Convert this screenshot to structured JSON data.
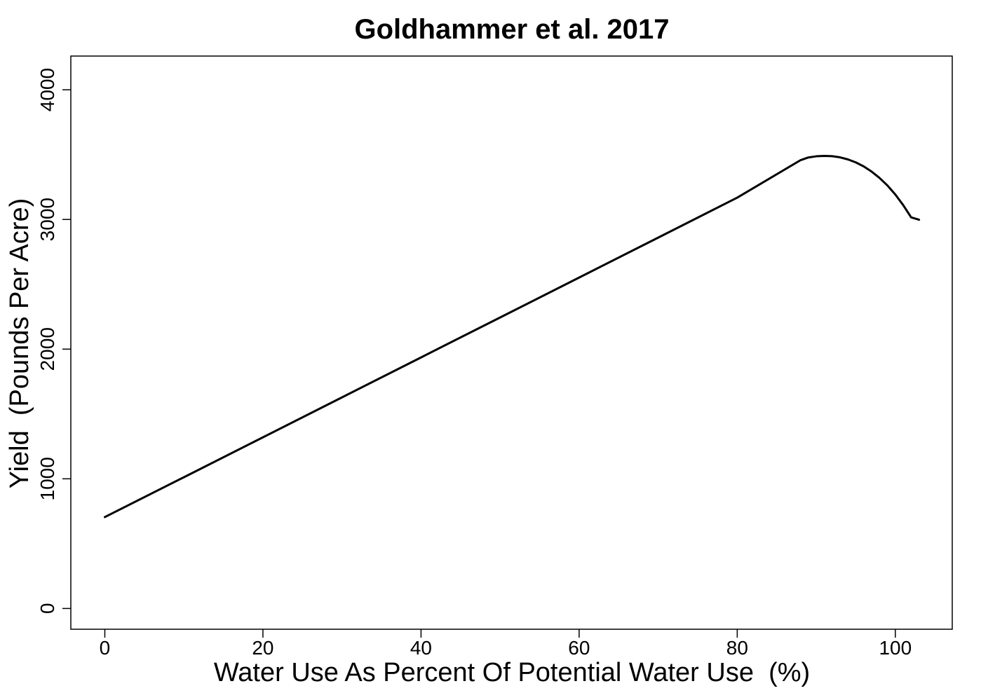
{
  "chart_data": {
    "type": "line",
    "title": "Goldhammer et al. 2017",
    "xlabel": "Water Use As Percent Of Potential Water Use  (%)",
    "ylabel": "Yield  (Pounds Per Acre)",
    "xlim": [
      -4.3,
      107.2
    ],
    "ylim": [
      -160,
      4260
    ],
    "xticks": [
      0,
      20,
      40,
      60,
      80,
      100
    ],
    "xtick_labels": [
      "0",
      "20",
      "40",
      "60",
      "80",
      "100"
    ],
    "yticks": [
      0,
      1000,
      2000,
      3000,
      4000
    ],
    "ytick_labels": [
      "0",
      "1000",
      "2000",
      "3000",
      "4000"
    ],
    "grid": false,
    "legend": "none",
    "line_color": "#000000",
    "series": [
      {
        "x": [
          0,
          10,
          20,
          30,
          40,
          50,
          60,
          70,
          80,
          88,
          89,
          90,
          91,
          92,
          93,
          94,
          95,
          96,
          97,
          98,
          99,
          100,
          101,
          102,
          103
        ],
        "y": [
          705,
          1012,
          1320,
          1628,
          1936,
          2244,
          2552,
          2860,
          3168,
          3457,
          3478,
          3487,
          3490,
          3488,
          3479,
          3463,
          3440,
          3409,
          3369,
          3320,
          3262,
          3192,
          3110,
          3016,
          2998
        ]
      }
    ]
  }
}
